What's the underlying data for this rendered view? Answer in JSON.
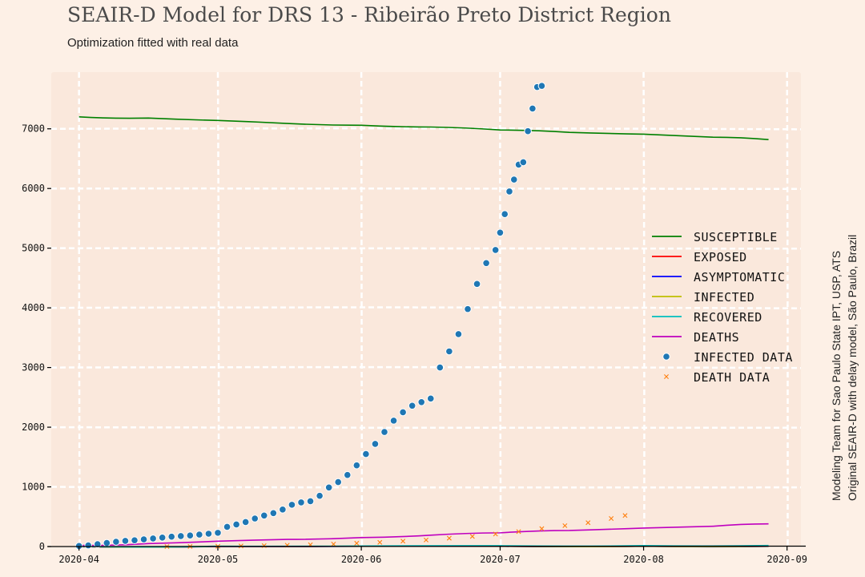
{
  "header": {
    "title": "SEAIR-D Model for DRS 13 - Ribeirão Preto District Region",
    "subtitle": "Optimization fitted with real data"
  },
  "credit": {
    "line1": "Modeling Team for Sao Paulo State IPT, USP, ATS",
    "line2": "Original SEAIR-D with delay model, São Paulo, Brazil"
  },
  "colors": {
    "background": "#fdf0e6",
    "plot_background": "#fae8dc",
    "grid": "#ffffff",
    "susceptible": "#008000",
    "exposed": "#ff0000",
    "asymptomatic": "#0000ff",
    "infected": "#bfbf00",
    "recovered": "#00bfbf",
    "deaths": "#bf00bf",
    "infected_data": "#1f77b4",
    "death_data": "#ff7f0e"
  },
  "chart_data": {
    "type": "line",
    "title": "SEAIR-D Model for DRS 13 - Ribeirão Preto District Region",
    "subtitle": "Optimization fitted with real data",
    "xlabel": "",
    "ylabel": "",
    "xlim": [
      "2020-03-26",
      "2020-09-04"
    ],
    "ylim": [
      0,
      7950
    ],
    "x_ticks": [
      "2020-04",
      "2020-05",
      "2020-06",
      "2020-07",
      "2020-08",
      "2020-09"
    ],
    "y_ticks": [
      0,
      1000,
      2000,
      3000,
      4000,
      5000,
      6000,
      7000
    ],
    "grid": true,
    "legend_position": "right",
    "series": [
      {
        "name": "SUSCEPTIBLE",
        "kind": "line",
        "color_key": "susceptible",
        "x": [
          "2020-04-01",
          "2020-04-16",
          "2020-05-01",
          "2020-05-16",
          "2020-06-01",
          "2020-06-16",
          "2020-07-01",
          "2020-07-16",
          "2020-08-01",
          "2020-08-16",
          "2020-08-28"
        ],
        "y": [
          7200,
          7180,
          7140,
          7090,
          7060,
          7030,
          6980,
          6940,
          6910,
          6860,
          6820
        ]
      },
      {
        "name": "EXPOSED",
        "kind": "line",
        "color_key": "exposed",
        "x": [
          "2020-04-01",
          "2020-05-01",
          "2020-06-01",
          "2020-07-01",
          "2020-08-01",
          "2020-08-28"
        ],
        "y": [
          0,
          3,
          5,
          6,
          5,
          4
        ]
      },
      {
        "name": "ASYMPTOMATIC",
        "kind": "line",
        "color_key": "asymptomatic",
        "x": [
          "2020-04-01",
          "2020-05-01",
          "2020-06-01",
          "2020-07-01",
          "2020-08-01",
          "2020-08-28"
        ],
        "y": [
          0,
          2,
          4,
          5,
          4,
          3
        ]
      },
      {
        "name": "INFECTED",
        "kind": "line",
        "color_key": "infected",
        "x": [
          "2020-04-01",
          "2020-05-01",
          "2020-06-01",
          "2020-07-01",
          "2020-08-01",
          "2020-08-28"
        ],
        "y": [
          0,
          4,
          6,
          7,
          6,
          5
        ]
      },
      {
        "name": "RECOVERED",
        "kind": "line",
        "color_key": "recovered",
        "x": [
          "2020-04-01",
          "2020-05-01",
          "2020-06-01",
          "2020-07-01",
          "2020-08-01",
          "2020-08-28"
        ],
        "y": [
          0,
          6,
          10,
          14,
          16,
          17
        ]
      },
      {
        "name": "DEATHS",
        "kind": "line",
        "color_key": "deaths",
        "x": [
          "2020-04-01",
          "2020-04-16",
          "2020-05-01",
          "2020-05-16",
          "2020-06-01",
          "2020-06-16",
          "2020-07-01",
          "2020-07-16",
          "2020-08-01",
          "2020-08-16",
          "2020-08-28"
        ],
        "y": [
          20,
          50,
          90,
          120,
          150,
          190,
          230,
          270,
          310,
          340,
          380
        ]
      },
      {
        "name": "INFECTED DATA",
        "kind": "scatter",
        "color_key": "infected_data",
        "x": [
          "2020-04-01",
          "2020-04-03",
          "2020-04-05",
          "2020-04-07",
          "2020-04-09",
          "2020-04-11",
          "2020-04-13",
          "2020-04-15",
          "2020-04-17",
          "2020-04-19",
          "2020-04-21",
          "2020-04-23",
          "2020-04-25",
          "2020-04-27",
          "2020-04-29",
          "2020-05-01",
          "2020-05-03",
          "2020-05-05",
          "2020-05-07",
          "2020-05-09",
          "2020-05-11",
          "2020-05-13",
          "2020-05-15",
          "2020-05-17",
          "2020-05-19",
          "2020-05-21",
          "2020-05-23",
          "2020-05-25",
          "2020-05-27",
          "2020-05-29",
          "2020-05-31",
          "2020-06-02",
          "2020-06-04",
          "2020-06-06",
          "2020-06-08",
          "2020-06-10",
          "2020-06-12",
          "2020-06-14",
          "2020-06-16",
          "2020-06-18",
          "2020-06-20",
          "2020-06-22",
          "2020-06-24",
          "2020-06-26",
          "2020-06-28",
          "2020-06-30",
          "2020-07-01",
          "2020-07-02",
          "2020-07-03",
          "2020-07-04",
          "2020-07-05",
          "2020-07-06",
          "2020-07-07",
          "2020-07-08",
          "2020-07-09",
          "2020-07-10"
        ],
        "y": [
          10,
          20,
          40,
          60,
          80,
          95,
          105,
          120,
          135,
          150,
          165,
          175,
          185,
          200,
          215,
          230,
          330,
          370,
          410,
          470,
          520,
          560,
          620,
          700,
          740,
          760,
          850,
          990,
          1080,
          1200,
          1360,
          1550,
          1720,
          1920,
          2110,
          2250,
          2360,
          2420,
          2480,
          3000,
          3270,
          3560,
          3980,
          4400,
          4750,
          4970,
          5260,
          5570,
          5950,
          6150,
          6400,
          6440,
          6960,
          7340,
          7700,
          7720
        ]
      },
      {
        "name": "DEATH DATA",
        "kind": "scatter",
        "color_key": "death_data",
        "x": [
          "2020-04-20",
          "2020-04-25",
          "2020-05-01",
          "2020-05-06",
          "2020-05-11",
          "2020-05-16",
          "2020-05-21",
          "2020-05-26",
          "2020-05-31",
          "2020-06-05",
          "2020-06-10",
          "2020-06-15",
          "2020-06-20",
          "2020-06-25",
          "2020-06-30",
          "2020-07-05",
          "2020-07-10",
          "2020-07-15",
          "2020-07-20",
          "2020-07-25",
          "2020-07-28"
        ],
        "y": [
          0,
          2,
          5,
          10,
          15,
          22,
          30,
          40,
          55,
          70,
          90,
          110,
          140,
          170,
          210,
          250,
          300,
          350,
          400,
          470,
          520
        ]
      }
    ]
  }
}
